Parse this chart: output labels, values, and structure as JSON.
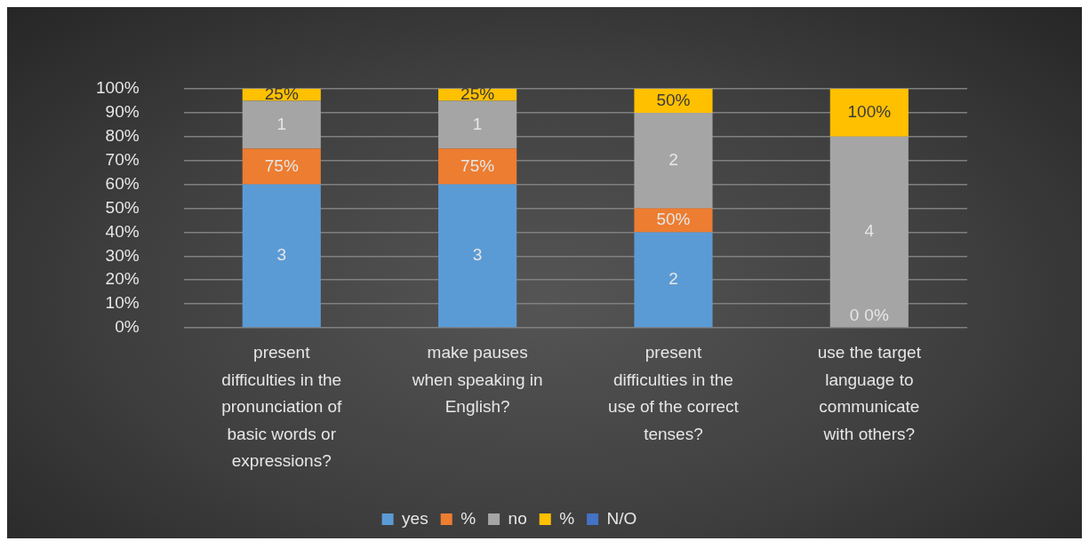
{
  "chart_data": {
    "type": "bar",
    "stacked": true,
    "categories": [
      "present difficulties in the pronunciation of basic words or expressions?",
      "make pauses when speaking in English?",
      "present difficulties in the use of the correct tenses?",
      "use the target language to communicate with others?"
    ],
    "series": [
      {
        "name": "yes",
        "color": "#5b9bd5",
        "values": [
          60,
          60,
          40,
          0
        ]
      },
      {
        "name": "%",
        "color": "#ed7d31",
        "values": [
          15,
          15,
          10,
          0
        ]
      },
      {
        "name": "no",
        "color": "#a5a5a5",
        "values": [
          20,
          20,
          40,
          80
        ]
      },
      {
        "name": "%",
        "color": "#ffc000",
        "values": [
          5,
          5,
          10,
          20
        ]
      },
      {
        "name": "N/O",
        "color": "#4472c4",
        "values": [
          null,
          null,
          null,
          null
        ]
      }
    ],
    "annotations": [
      "3",
      "75%",
      "1",
      "25%",
      "3",
      "75%",
      "1",
      "25%",
      "2",
      "50%",
      "2",
      "50%",
      "0",
      "0%",
      "4",
      "100%"
    ],
    "ylim": [
      0,
      100
    ],
    "yticks": [
      {
        "value": 0,
        "label": "0%"
      },
      {
        "value": 10,
        "label": "10%"
      },
      {
        "value": 20,
        "label": "20%"
      },
      {
        "value": 30,
        "label": "30%"
      },
      {
        "value": 40,
        "label": "40%"
      },
      {
        "value": 50,
        "label": "50%"
      },
      {
        "value": 60,
        "label": "60%"
      },
      {
        "value": 70,
        "label": "70%"
      },
      {
        "value": 80,
        "label": "80%"
      },
      {
        "value": 90,
        "label": "90%"
      },
      {
        "value": 100,
        "label": "100%"
      }
    ],
    "grid": "y",
    "legend": "bottom"
  }
}
